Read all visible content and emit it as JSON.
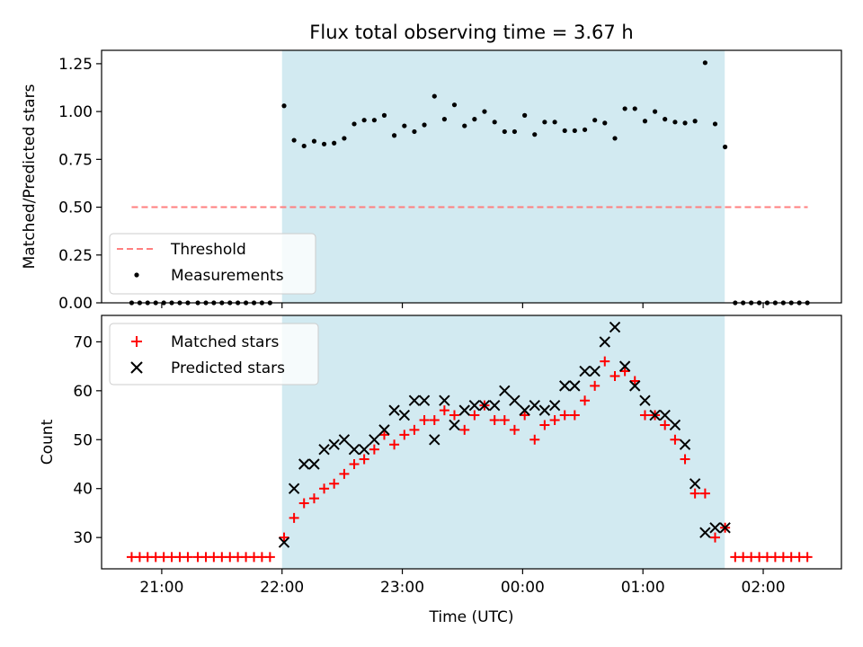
{
  "figure": {
    "title": "Flux total observing time = 3.67 h",
    "xlabel": "Time (UTC)"
  },
  "colors": {
    "shade": "#add8e6",
    "threshold": "#ff7f7f",
    "matched": "#ff0000",
    "predicted": "#000000",
    "measurement": "#000000"
  },
  "chart_data": [
    {
      "type": "scatter",
      "panel": "top",
      "ylabel": "Matched/Predicted stars",
      "xlim": [
        20.5,
        26.65
      ],
      "ylim": [
        0,
        1.32
      ],
      "yticks": [
        0,
        0.25,
        0.5,
        0.75,
        1.0,
        1.25
      ],
      "ytick_labels": [
        "0.00",
        "0.25",
        "0.50",
        "0.75",
        "1.00",
        "1.25"
      ],
      "xticks": [
        21,
        22,
        23,
        24,
        25,
        26
      ],
      "xtick_labels": [
        "21:00",
        "22:00",
        "23:00",
        "00:00",
        "01:00",
        "02:00"
      ],
      "observing_window": [
        22.0,
        25.68
      ],
      "legend": {
        "placement": "lower-left",
        "entries": [
          "Threshold",
          "Measurements"
        ]
      },
      "series": [
        {
          "name": "Threshold",
          "kind": "dashed-line",
          "x": [
            20.75,
            26.37
          ],
          "y": [
            0.5,
            0.5
          ]
        },
        {
          "name": "Measurements",
          "kind": "points",
          "x": [
            20.75,
            20.817,
            20.883,
            20.95,
            21.017,
            21.083,
            21.15,
            21.217,
            21.3,
            21.367,
            21.433,
            21.5,
            21.567,
            21.633,
            21.7,
            21.767,
            21.833,
            21.9,
            22.017,
            22.1,
            22.183,
            22.267,
            22.35,
            22.433,
            22.517,
            22.6,
            22.683,
            22.767,
            22.85,
            22.933,
            23.017,
            23.1,
            23.183,
            23.267,
            23.35,
            23.433,
            23.517,
            23.6,
            23.683,
            23.767,
            23.85,
            23.933,
            24.017,
            24.1,
            24.183,
            24.267,
            24.35,
            24.433,
            24.517,
            24.6,
            24.683,
            24.767,
            24.85,
            24.933,
            25.017,
            25.1,
            25.183,
            25.267,
            25.35,
            25.433,
            25.517,
            25.6,
            25.683,
            25.767,
            25.833,
            25.9,
            25.967,
            26.033,
            26.1,
            26.167,
            26.233,
            26.3,
            26.367
          ],
          "y": [
            0,
            0,
            0,
            0,
            0,
            0,
            0,
            0,
            0,
            0,
            0,
            0,
            0,
            0,
            0,
            0,
            0,
            0,
            1.03,
            0.85,
            0.82,
            0.845,
            0.83,
            0.835,
            0.86,
            0.935,
            0.955,
            0.955,
            0.98,
            0.875,
            0.925,
            0.895,
            0.93,
            1.08,
            0.96,
            1.035,
            0.925,
            0.96,
            1.0,
            0.945,
            0.895,
            0.895,
            0.98,
            0.88,
            0.945,
            0.945,
            0.9,
            0.9,
            0.905,
            0.955,
            0.94,
            0.86,
            1.015,
            1.015,
            0.95,
            1.0,
            0.96,
            0.945,
            0.94,
            0.95,
            1.255,
            0.935,
            0.815,
            0,
            0,
            0,
            0,
            0,
            0,
            0,
            0,
            0,
            0
          ]
        }
      ]
    },
    {
      "type": "scatter",
      "panel": "bottom",
      "ylabel": "Count",
      "xlabel": "Time (UTC)",
      "xlim": [
        20.5,
        26.65
      ],
      "ylim": [
        23.6,
        75.4
      ],
      "yticks": [
        30,
        40,
        50,
        60,
        70
      ],
      "ytick_labels": [
        "30",
        "40",
        "50",
        "60",
        "70"
      ],
      "xticks": [
        21,
        22,
        23,
        24,
        25,
        26
      ],
      "xtick_labels": [
        "21:00",
        "22:00",
        "23:00",
        "00:00",
        "01:00",
        "02:00"
      ],
      "observing_window": [
        22.0,
        25.68
      ],
      "legend": {
        "placement": "upper-left",
        "entries": [
          "Matched stars",
          "Predicted stars"
        ]
      },
      "series": [
        {
          "name": "Matched stars",
          "kind": "plus",
          "x": [
            20.75,
            20.817,
            20.883,
            20.95,
            21.017,
            21.083,
            21.15,
            21.217,
            21.3,
            21.367,
            21.433,
            21.5,
            21.567,
            21.633,
            21.7,
            21.767,
            21.833,
            21.9,
            22.017,
            22.1,
            22.183,
            22.267,
            22.35,
            22.433,
            22.517,
            22.6,
            22.683,
            22.767,
            22.85,
            22.933,
            23.017,
            23.1,
            23.183,
            23.267,
            23.35,
            23.433,
            23.517,
            23.6,
            23.683,
            23.767,
            23.85,
            23.933,
            24.017,
            24.1,
            24.183,
            24.267,
            24.35,
            24.433,
            24.517,
            24.6,
            24.683,
            24.767,
            24.85,
            24.933,
            25.017,
            25.1,
            25.183,
            25.267,
            25.35,
            25.433,
            25.517,
            25.6,
            25.683,
            25.767,
            25.833,
            25.9,
            25.967,
            26.033,
            26.1,
            26.167,
            26.233,
            26.3,
            26.367
          ],
          "y": [
            26,
            26,
            26,
            26,
            26,
            26,
            26,
            26,
            26,
            26,
            26,
            26,
            26,
            26,
            26,
            26,
            26,
            26,
            30,
            34,
            37,
            38,
            40,
            41,
            43,
            45,
            46,
            48,
            51,
            49,
            51,
            52,
            54,
            54,
            56,
            55,
            52,
            55,
            57,
            54,
            54,
            52,
            55,
            50,
            53,
            54,
            55,
            55,
            58,
            61,
            66,
            63,
            64,
            62,
            55,
            55,
            53,
            50,
            46,
            39,
            39,
            30,
            32,
            26,
            26,
            26,
            26,
            26,
            26,
            26,
            26,
            26,
            26
          ]
        },
        {
          "name": "Predicted stars",
          "kind": "x",
          "x": [
            22.017,
            22.1,
            22.183,
            22.267,
            22.35,
            22.433,
            22.517,
            22.6,
            22.683,
            22.767,
            22.85,
            22.933,
            23.017,
            23.1,
            23.183,
            23.267,
            23.35,
            23.433,
            23.517,
            23.6,
            23.683,
            23.767,
            23.85,
            23.933,
            24.017,
            24.1,
            24.183,
            24.267,
            24.35,
            24.433,
            24.517,
            24.6,
            24.683,
            24.767,
            24.85,
            24.933,
            25.017,
            25.1,
            25.183,
            25.267,
            25.35,
            25.433,
            25.517,
            25.6,
            25.683
          ],
          "y": [
            29,
            40,
            45,
            45,
            48,
            49,
            50,
            48,
            48,
            50,
            52,
            56,
            55,
            58,
            58,
            50,
            58,
            53,
            56,
            57,
            57,
            57,
            60,
            58,
            56,
            57,
            56,
            57,
            61,
            61,
            64,
            64,
            70,
            73,
            65,
            61,
            58,
            55,
            55,
            53,
            49,
            41,
            31,
            32,
            32
          ]
        }
      ]
    }
  ]
}
